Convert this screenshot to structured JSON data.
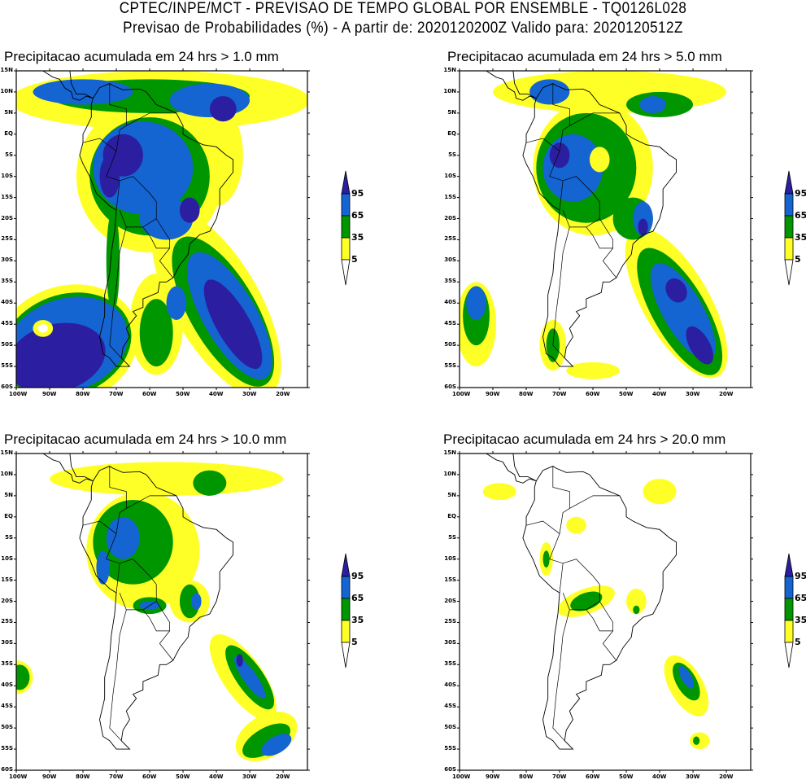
{
  "header": {
    "line1": "CPTEC/INPE/MCT - PREVISAO DE TEMPO GLOBAL POR ENSEMBLE - TQ0126L028",
    "line2": "Previsao de Probabilidades (%) -  A partir de: 2020120200Z  Valido para: 2020120512Z"
  },
  "panels": [
    {
      "title": "Precipitacao acumulada em 24 hrs > 1.0 mm"
    },
    {
      "title": "Precipitacao acumulada em 24 hrs > 5.0 mm"
    },
    {
      "title": "Precipitacao acumulada em 24 hrs > 10.0 mm"
    },
    {
      "title": "Precipitacao acumulada em 24 hrs > 20.0 mm"
    }
  ],
  "axes": {
    "lat_labels": [
      "15N",
      "10N",
      "5N",
      "EQ",
      "5S",
      "10S",
      "15S",
      "20S",
      "25S",
      "30S",
      "35S",
      "40S",
      "45S",
      "50S",
      "55S",
      "60S"
    ],
    "lon_labels": [
      "100W",
      "90W",
      "80W",
      "70W",
      "60W",
      "50W",
      "40W",
      "30W",
      "20W"
    ]
  },
  "legend": {
    "levels": [
      "95",
      "65",
      "35",
      "5"
    ],
    "colors": {
      "navy": "#2c1ea0",
      "blue": "#1464d2",
      "green": "#009600",
      "yellow": "#ffff28"
    }
  }
}
